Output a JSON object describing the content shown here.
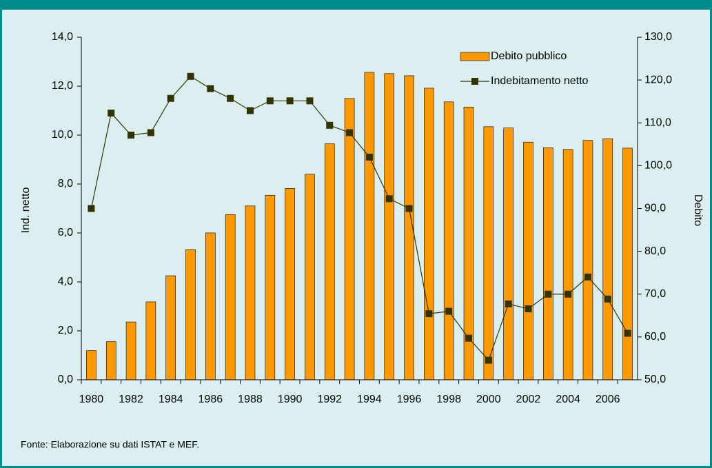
{
  "chart_data": {
    "type": "combo",
    "categories": [
      "1980",
      null,
      "1982",
      null,
      "1984",
      null,
      "1986",
      null,
      "1988",
      null,
      "1990",
      null,
      "1992",
      null,
      "1994",
      null,
      "1996",
      null,
      "1998",
      null,
      "2000",
      null,
      "2002",
      null,
      "2004",
      null,
      "2006",
      null
    ],
    "ylabel": "Ind. netto",
    "y2label": "Debito",
    "ylim": [
      0,
      14
    ],
    "yticks": [
      {
        "value": 0,
        "label": "0,0"
      },
      {
        "value": 2,
        "label": "2,0"
      },
      {
        "value": 4,
        "label": "4,0"
      },
      {
        "value": 6,
        "label": "6,0"
      },
      {
        "value": 8,
        "label": "8,0"
      },
      {
        "value": 10,
        "label": "10,0"
      },
      {
        "value": 12,
        "label": "12,0"
      },
      {
        "value": 14,
        "label": "14,0"
      }
    ],
    "y2lim": [
      50,
      130
    ],
    "y2ticks": [
      {
        "value": 50,
        "label": "50,0"
      },
      {
        "value": 60,
        "label": "60,0"
      },
      {
        "value": 70,
        "label": "70,0"
      },
      {
        "value": 80,
        "label": "80,0"
      },
      {
        "value": 90,
        "label": "90,0"
      },
      {
        "value": 100,
        "label": "100,0"
      },
      {
        "value": 110,
        "label": "110,0"
      },
      {
        "value": 120,
        "label": "120,0"
      },
      {
        "value": 130,
        "label": "130,0"
      }
    ],
    "grid": false,
    "legend": "top-right",
    "series": [
      {
        "name": "Debito pubblico",
        "type": "bar",
        "axis": "y2",
        "color": "#ff9900",
        "values": [
          56.8,
          58.9,
          63.5,
          68.2,
          74.3,
          80.4,
          84.3,
          88.6,
          90.6,
          93.1,
          94.7,
          98.0,
          105.1,
          115.7,
          121.8,
          121.5,
          121.0,
          118.1,
          114.9,
          113.7,
          109.1,
          108.8,
          105.5,
          104.2,
          103.8,
          105.9,
          106.3,
          104.1
        ]
      },
      {
        "name": "Indebitamento netto",
        "type": "line",
        "axis": "y",
        "color": "#333300",
        "values": [
          7.0,
          10.9,
          10.0,
          10.1,
          11.5,
          12.4,
          11.9,
          11.5,
          11.0,
          11.4,
          11.4,
          11.4,
          10.4,
          10.1,
          9.1,
          7.4,
          7.0,
          2.7,
          2.8,
          1.7,
          0.8,
          3.1,
          2.9,
          3.5,
          3.5,
          4.2,
          3.3,
          1.9
        ]
      }
    ]
  },
  "source": "Fonte: Elaborazione su dati ISTAT e MEF."
}
